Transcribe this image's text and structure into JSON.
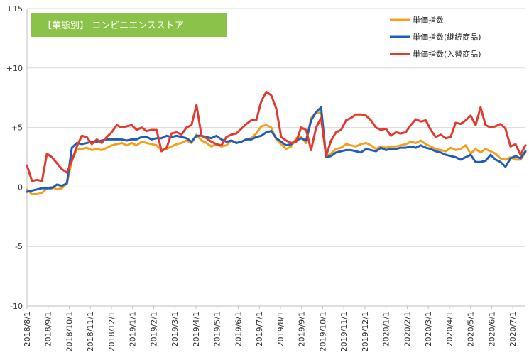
{
  "chart_data": {
    "type": "line",
    "title": "【業態別】 コンビニエンスストア",
    "title_box_color": "#8bc34a",
    "ylim": [
      -10,
      15
    ],
    "y_ticks": [
      {
        "value": 15,
        "label": "+15"
      },
      {
        "value": 10,
        "label": "+10"
      },
      {
        "value": 5,
        "label": "+5"
      },
      {
        "value": 0,
        "label": "0"
      },
      {
        "value": -5,
        "label": "-5"
      },
      {
        "value": -10,
        "label": "-10"
      }
    ],
    "x_ticks": [
      "2018/8/1",
      "2018/9/1",
      "2018/10/1",
      "2018/11/1",
      "2018/12/1",
      "2019/1/1",
      "2019/2/1",
      "2019/3/1",
      "2019/4/1",
      "2019/5/1",
      "2019/6/1",
      "2019/7/1",
      "2019/8/1",
      "2019/9/1",
      "2019/10/1",
      "2019/11/1",
      "2019/12/1",
      "2020/1/1",
      "2020/2/1",
      "2020/3/1",
      "2020/4/1",
      "2020/5/1",
      "2020/6/1",
      "2020/7/1"
    ],
    "legend_position": "top-right",
    "grid": "horizontal",
    "series": [
      {
        "name": "単価指数",
        "color": "#f5a01a",
        "values": [
          -0.2,
          -0.6,
          -0.6,
          -0.5,
          -0.1,
          0.0,
          -0.2,
          -0.1,
          0.3,
          2.2,
          3.2,
          3.2,
          3.3,
          3.1,
          3.2,
          3.1,
          3.3,
          3.5,
          3.6,
          3.7,
          3.5,
          3.7,
          3.5,
          3.8,
          3.7,
          3.6,
          3.5,
          3.1,
          3.2,
          3.4,
          3.6,
          3.7,
          3.9,
          3.7,
          4.4,
          3.9,
          3.7,
          3.4,
          3.6,
          3.4,
          3.5,
          3.9,
          3.7,
          3.8,
          4.0,
          4.1,
          4.5,
          5.1,
          5.2,
          5.0,
          4.0,
          3.6,
          3.2,
          3.4,
          4.1,
          4.2,
          3.7,
          5.8,
          6.3,
          6.2,
          2.6,
          2.8,
          3.2,
          3.3,
          3.6,
          3.5,
          3.4,
          3.6,
          3.7,
          3.5,
          3.2,
          3.4,
          3.3,
          3.4,
          3.4,
          3.5,
          3.6,
          3.8,
          3.7,
          3.9,
          3.6,
          3.4,
          3.2,
          3.1,
          3.0,
          3.3,
          3.1,
          3.2,
          3.5,
          2.8,
          3.2,
          2.9,
          3.2,
          3.0,
          2.8,
          2.4,
          2.3,
          2.5,
          2.3,
          2.3,
          2.9
        ]
      },
      {
        "name": "単価指数(継続商品)",
        "color": "#1f5eb8",
        "values": [
          -0.4,
          -0.3,
          -0.2,
          -0.1,
          -0.1,
          -0.1,
          0.2,
          0.1,
          0.3,
          3.3,
          3.7,
          3.6,
          3.7,
          3.8,
          3.8,
          3.9,
          4.0,
          4.0,
          4.0,
          4.0,
          3.9,
          4.0,
          4.0,
          4.2,
          4.2,
          4.0,
          4.1,
          4.1,
          4.3,
          4.2,
          4.3,
          4.2,
          4.1,
          3.8,
          4.3,
          4.3,
          4.2,
          4.1,
          4.3,
          4.0,
          3.8,
          3.9,
          3.7,
          3.8,
          4.0,
          4.0,
          4.2,
          4.3,
          4.6,
          4.7,
          4.1,
          3.8,
          3.5,
          3.6,
          3.9,
          4.1,
          3.9,
          5.6,
          6.3,
          6.7,
          2.5,
          2.6,
          2.9,
          3.0,
          3.1,
          3.1,
          3.0,
          2.9,
          3.2,
          3.1,
          3.0,
          3.3,
          3.1,
          3.2,
          3.2,
          3.3,
          3.3,
          3.4,
          3.3,
          3.5,
          3.3,
          3.2,
          3.0,
          2.9,
          2.7,
          2.6,
          2.5,
          2.3,
          2.5,
          2.7,
          2.1,
          2.1,
          2.2,
          2.7,
          2.3,
          2.1,
          1.7,
          2.4,
          2.6,
          2.4,
          3.0
        ]
      },
      {
        "name": "単価指数(入替商品)",
        "color": "#e03b2e",
        "values": [
          1.8,
          0.5,
          0.6,
          0.5,
          2.8,
          2.5,
          2.0,
          1.5,
          1.2,
          2.2,
          3.4,
          4.3,
          4.2,
          3.6,
          4.0,
          3.7,
          4.2,
          4.6,
          5.2,
          5.0,
          5.1,
          5.2,
          4.8,
          5.0,
          4.7,
          4.8,
          4.8,
          3.0,
          3.3,
          4.5,
          4.6,
          4.4,
          5.0,
          5.2,
          6.9,
          4.3,
          4.1,
          3.8,
          3.6,
          3.5,
          4.2,
          4.4,
          4.5,
          4.9,
          5.3,
          5.6,
          5.6,
          7.2,
          8.0,
          7.7,
          6.6,
          4.2,
          3.9,
          3.7,
          3.8,
          5.0,
          4.8,
          3.1,
          5.0,
          5.8,
          2.6,
          3.9,
          4.6,
          4.8,
          5.6,
          5.8,
          6.1,
          6.1,
          6.0,
          5.6,
          5.0,
          4.8,
          4.9,
          4.3,
          4.6,
          4.5,
          4.6,
          5.2,
          5.7,
          5.5,
          5.6,
          4.8,
          4.2,
          4.4,
          4.1,
          4.2,
          5.4,
          5.3,
          5.6,
          6.0,
          5.2,
          6.7,
          5.2,
          5.0,
          5.1,
          5.3,
          4.9,
          3.4,
          3.6,
          2.7,
          3.5
        ]
      }
    ]
  }
}
